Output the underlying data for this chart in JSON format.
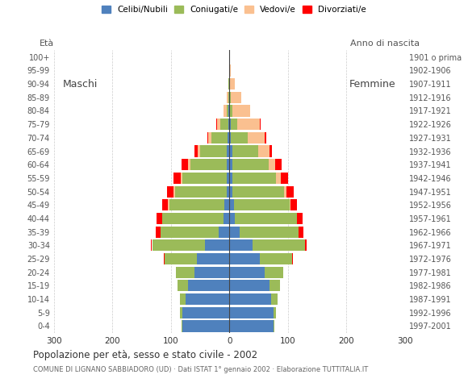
{
  "age_groups": [
    "0-4",
    "5-9",
    "10-14",
    "15-19",
    "20-24",
    "25-29",
    "30-34",
    "35-39",
    "40-44",
    "45-49",
    "50-54",
    "55-59",
    "60-64",
    "65-69",
    "70-74",
    "75-79",
    "80-84",
    "85-89",
    "90-94",
    "95-99",
    "100+"
  ],
  "birth_years": [
    "1997-2001",
    "1992-1996",
    "1987-1991",
    "1982-1986",
    "1977-1981",
    "1972-1976",
    "1967-1971",
    "1962-1966",
    "1957-1961",
    "1952-1956",
    "1947-1951",
    "1942-1946",
    "1937-1941",
    "1932-1936",
    "1927-1931",
    "1922-1926",
    "1917-1921",
    "1912-1916",
    "1907-1911",
    "1902-1906",
    "1901 o prima"
  ],
  "colors": {
    "celibe": "#4F81BD",
    "coniugato": "#9BBB59",
    "vedovo": "#FAC090",
    "divorziato": "#FF0000"
  },
  "males": {
    "celibe": [
      80,
      80,
      75,
      70,
      60,
      55,
      42,
      18,
      10,
      8,
      5,
      5,
      5,
      5,
      3,
      2,
      1,
      0,
      0,
      0,
      0
    ],
    "coniugato": [
      2,
      5,
      10,
      18,
      32,
      55,
      90,
      100,
      105,
      95,
      88,
      75,
      62,
      45,
      28,
      14,
      4,
      2,
      1,
      0,
      0
    ],
    "vedovo": [
      0,
      0,
      0,
      0,
      0,
      0,
      0,
      0,
      0,
      2,
      3,
      3,
      4,
      4,
      5,
      5,
      5,
      3,
      1,
      0,
      0
    ],
    "divorziato": [
      0,
      0,
      0,
      0,
      0,
      2,
      2,
      8,
      10,
      10,
      10,
      12,
      10,
      5,
      2,
      2,
      0,
      0,
      0,
      0,
      0
    ]
  },
  "females": {
    "celibe": [
      75,
      75,
      72,
      68,
      60,
      52,
      40,
      18,
      10,
      8,
      5,
      5,
      5,
      5,
      3,
      2,
      1,
      0,
      0,
      0,
      0
    ],
    "coniugato": [
      2,
      5,
      10,
      18,
      32,
      55,
      90,
      100,
      105,
      95,
      88,
      75,
      62,
      45,
      28,
      12,
      4,
      2,
      1,
      0,
      0
    ],
    "vedovo": [
      0,
      0,
      0,
      0,
      0,
      0,
      0,
      0,
      0,
      2,
      5,
      8,
      12,
      18,
      30,
      38,
      30,
      18,
      8,
      2,
      1
    ],
    "divorziato": [
      0,
      0,
      0,
      0,
      0,
      2,
      2,
      8,
      10,
      10,
      12,
      12,
      10,
      5,
      2,
      2,
      0,
      0,
      0,
      0,
      0
    ]
  },
  "title": "Popolazione per età, sesso e stato civile - 2002",
  "subtitle": "COMUNE DI LIGNANO SABBIADORO (UD) · Dati ISTAT 1° gennaio 2002 · Elaborazione TUTTITALIA.IT",
  "xlim": 300,
  "background_color": "#FFFFFF",
  "grid_color": "#CCCCCC"
}
